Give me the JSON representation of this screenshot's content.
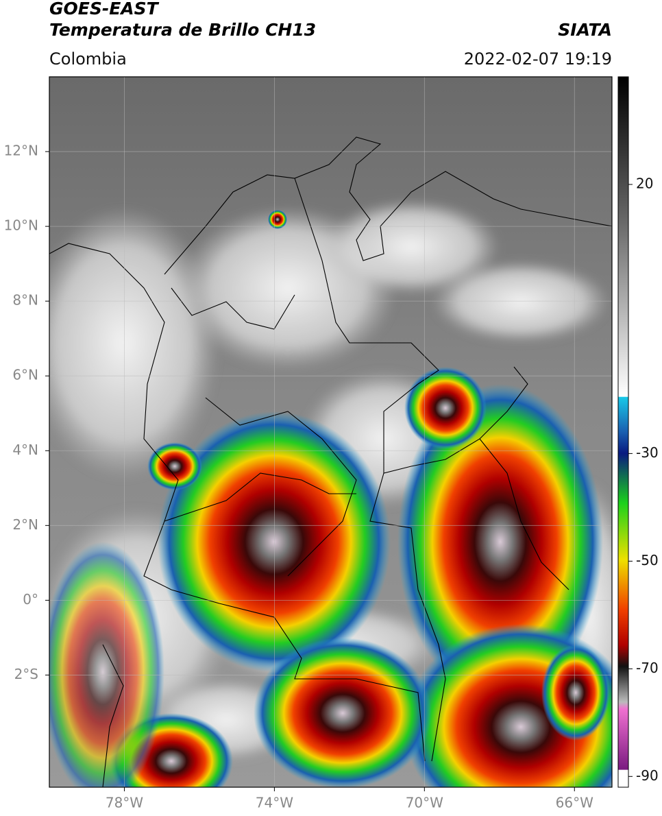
{
  "header": {
    "satellite": "GOES-EAST",
    "product": "Temperatura de Brillo CH13",
    "source": "SIATA",
    "region": "Colombia",
    "timestamp": "2022-02-07 19:19"
  },
  "map": {
    "latlim": [
      -5,
      14
    ],
    "lonlim": [
      -80,
      -65
    ],
    "latticks": [
      {
        "value": 12,
        "label": "12°N"
      },
      {
        "value": 10,
        "label": "10°N"
      },
      {
        "value": 8,
        "label": "8°N"
      },
      {
        "value": 6,
        "label": "6°N"
      },
      {
        "value": 4,
        "label": "4°N"
      },
      {
        "value": 2,
        "label": "2°N"
      },
      {
        "value": 0,
        "label": "0°"
      },
      {
        "value": -2,
        "label": "2°S"
      }
    ],
    "lonticks": [
      {
        "value": -78,
        "label": "78°W"
      },
      {
        "value": -74,
        "label": "74°W"
      },
      {
        "value": -70,
        "label": "70°W"
      },
      {
        "value": -66,
        "label": "66°W"
      }
    ]
  },
  "colorbar": {
    "lim": [
      -92,
      40
    ],
    "ticks": [
      20,
      -30,
      -50,
      -70,
      -90
    ]
  }
}
